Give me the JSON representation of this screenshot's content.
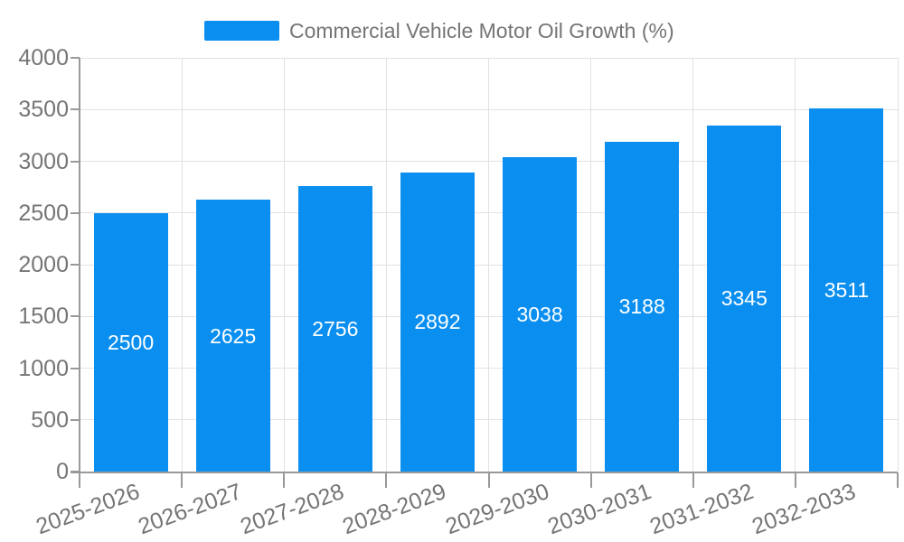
{
  "legend": {
    "label": "Commercial Vehicle Motor Oil Growth (%)"
  },
  "chart_data": {
    "type": "bar",
    "title": "Commercial Vehicle Motor Oil Growth (%)",
    "categories": [
      "2025-2026",
      "2026-2027",
      "2027-2028",
      "2028-2029",
      "2029-2030",
      "2030-2031",
      "2031-2032",
      "2032-2033"
    ],
    "values": [
      2500,
      2625,
      2756,
      2892,
      3038,
      3188,
      3345,
      3511
    ],
    "series": [
      {
        "name": "Commercial Vehicle Motor Oil Growth (%)",
        "values": [
          2500,
          2625,
          2756,
          2892,
          3038,
          3188,
          3345,
          3511
        ]
      }
    ],
    "xlabel": "",
    "ylabel": "",
    "ylim": [
      0,
      4000
    ],
    "yticks": [
      0,
      500,
      1000,
      1500,
      2000,
      2500,
      3000,
      3500,
      4000
    ],
    "grid": true,
    "bar_value_labels_position": "inside-center",
    "x_label_rotation_deg": -20,
    "legend_position": "top-center",
    "colors": {
      "bar": "#0A8FF0",
      "bar_label": "#FFFFFF",
      "grid_line": "#E2E2E2",
      "axis_line": "#999999",
      "axis_text": "#757575",
      "legend_text": "#757575",
      "background": "#FFFFFF"
    }
  }
}
